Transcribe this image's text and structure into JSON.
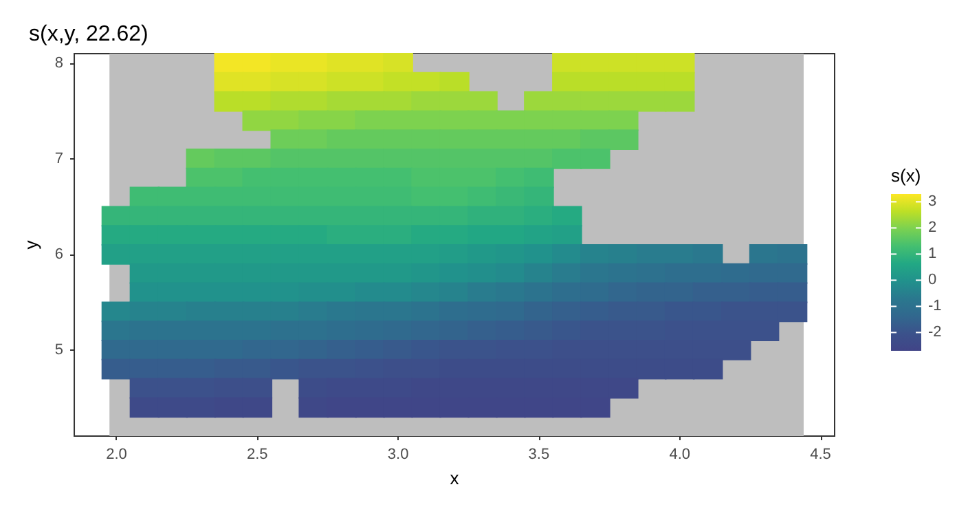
{
  "chart_data": {
    "type": "scatter",
    "title": "s(x,y, 22.62)",
    "xlabel": "x",
    "ylabel": "y",
    "clabel": "s(x)",
    "marker": "square",
    "grid": false,
    "x": [
      2.4,
      2.5,
      2.6,
      2.7,
      2.8,
      2.9,
      3.0,
      3.6,
      3.7,
      3.8,
      3.9,
      4.0,
      2.4,
      2.5,
      2.6,
      2.7,
      2.8,
      2.9,
      3.0,
      3.1,
      3.2,
      3.6,
      3.7,
      3.8,
      3.9,
      4.0,
      2.4,
      2.5,
      2.6,
      2.7,
      2.8,
      2.9,
      3.0,
      3.1,
      3.2,
      3.3,
      3.5,
      3.6,
      3.7,
      3.8,
      3.9,
      4.0,
      2.5,
      2.6,
      2.7,
      2.8,
      2.9,
      3.0,
      3.1,
      3.2,
      3.3,
      3.4,
      3.5,
      3.6,
      3.7,
      3.8,
      2.6,
      2.7,
      2.8,
      2.9,
      3.0,
      3.1,
      3.2,
      3.3,
      3.4,
      3.5,
      3.6,
      3.7,
      3.8,
      2.3,
      2.4,
      2.5,
      2.6,
      2.7,
      2.8,
      2.9,
      3.0,
      3.1,
      3.2,
      3.3,
      3.4,
      3.5,
      3.6,
      3.7,
      2.3,
      2.4,
      2.5,
      2.6,
      2.7,
      2.8,
      2.9,
      3.0,
      3.1,
      3.2,
      3.3,
      3.4,
      3.5,
      2.1,
      2.2,
      2.3,
      2.4,
      2.5,
      2.6,
      2.7,
      2.8,
      2.9,
      3.0,
      3.1,
      3.2,
      3.3,
      3.4,
      3.5,
      2.0,
      2.1,
      2.2,
      2.3,
      2.4,
      2.5,
      2.6,
      2.7,
      2.8,
      2.9,
      3.0,
      3.1,
      3.2,
      3.3,
      3.4,
      3.5,
      3.6,
      2.0,
      2.1,
      2.2,
      2.3,
      2.4,
      2.5,
      2.6,
      2.7,
      2.8,
      2.9,
      3.0,
      3.1,
      3.2,
      3.3,
      3.4,
      3.5,
      3.6,
      2.0,
      2.1,
      2.2,
      2.3,
      2.4,
      2.5,
      2.6,
      2.7,
      2.8,
      2.9,
      3.0,
      3.1,
      3.2,
      3.3,
      3.4,
      3.5,
      3.6,
      3.7,
      3.8,
      3.9,
      4.0,
      4.1,
      4.3,
      4.4,
      2.1,
      2.2,
      2.3,
      2.4,
      2.5,
      2.6,
      2.7,
      2.8,
      2.9,
      3.0,
      3.1,
      3.2,
      3.3,
      3.4,
      3.5,
      3.6,
      3.7,
      3.8,
      3.9,
      4.0,
      4.1,
      4.2,
      4.3,
      4.4,
      2.1,
      2.2,
      2.3,
      2.4,
      2.5,
      2.6,
      2.7,
      2.8,
      2.9,
      3.0,
      3.1,
      3.2,
      3.3,
      3.4,
      3.5,
      3.6,
      3.7,
      3.8,
      3.9,
      4.0,
      4.1,
      4.2,
      4.3,
      4.4,
      2.0,
      2.1,
      2.2,
      2.3,
      2.4,
      2.5,
      2.6,
      2.7,
      2.8,
      2.9,
      3.0,
      3.1,
      3.2,
      3.3,
      3.4,
      3.5,
      3.6,
      3.7,
      3.8,
      3.9,
      4.0,
      4.1,
      4.2,
      4.3,
      4.4,
      2.0,
      2.1,
      2.2,
      2.3,
      2.4,
      2.5,
      2.6,
      2.7,
      2.8,
      2.9,
      3.0,
      3.1,
      3.2,
      3.3,
      3.4,
      3.5,
      3.6,
      3.7,
      3.8,
      3.9,
      4.0,
      4.1,
      4.2,
      4.3,
      2.0,
      2.1,
      2.2,
      2.3,
      2.4,
      2.5,
      2.6,
      2.7,
      2.8,
      2.9,
      3.0,
      3.1,
      3.2,
      3.3,
      3.4,
      3.5,
      3.6,
      3.7,
      3.8,
      3.9,
      4.0,
      4.1,
      4.2,
      2.0,
      2.1,
      2.2,
      2.3,
      2.4,
      2.5,
      2.6,
      2.7,
      2.8,
      2.9,
      3.0,
      3.1,
      3.2,
      3.3,
      3.4,
      3.5,
      3.6,
      3.7,
      3.8,
      3.9,
      4.0,
      4.1,
      2.1,
      2.2,
      2.3,
      2.4,
      2.5,
      2.7,
      2.8,
      2.9,
      3.0,
      3.1,
      3.2,
      3.3,
      3.4,
      3.5,
      3.6,
      3.7,
      3.8,
      2.1,
      2.2,
      2.3,
      2.4,
      2.5,
      2.7,
      2.8,
      2.9,
      3.0,
      3.1,
      3.2,
      3.3,
      3.4,
      3.5,
      3.6,
      3.7
    ],
    "values": [
      8,
      8,
      8,
      8,
      8,
      8,
      8,
      8,
      8,
      8,
      8,
      8,
      7.8,
      7.8,
      7.8,
      7.8,
      7.8,
      7.8,
      7.8,
      7.8,
      7.8,
      7.8,
      7.8,
      7.8,
      7.8,
      7.8,
      7.6,
      7.6,
      7.6,
      7.6,
      7.6,
      7.6,
      7.6,
      7.6,
      7.6,
      7.6,
      7.6,
      7.6,
      7.6,
      7.6,
      7.6,
      7.6,
      7.4,
      7.4,
      7.4,
      7.4,
      7.4,
      7.4,
      7.4,
      7.4,
      7.4,
      7.4,
      7.4,
      7.4,
      7.4,
      7.4,
      7.2,
      7.2,
      7.2,
      7.2,
      7.2,
      7.2,
      7.2,
      7.2,
      7.2,
      7.2,
      7.2,
      7.2,
      7.2,
      7,
      7,
      7,
      7,
      7,
      7,
      7,
      7,
      7,
      7,
      7,
      7,
      7,
      7,
      7,
      6.8,
      6.8,
      6.8,
      6.8,
      6.8,
      6.8,
      6.8,
      6.8,
      6.8,
      6.8,
      6.8,
      6.8,
      6.8,
      6.6,
      6.6,
      6.6,
      6.6,
      6.6,
      6.6,
      6.6,
      6.6,
      6.6,
      6.6,
      6.6,
      6.6,
      6.6,
      6.6,
      6.6,
      6.4,
      6.4,
      6.4,
      6.4,
      6.4,
      6.4,
      6.4,
      6.4,
      6.4,
      6.4,
      6.4,
      6.4,
      6.4,
      6.4,
      6.4,
      6.4,
      6.4,
      6.2,
      6.2,
      6.2,
      6.2,
      6.2,
      6.2,
      6.2,
      6.2,
      6.2,
      6.2,
      6.2,
      6.2,
      6.2,
      6.2,
      6.2,
      6.2,
      6.2,
      6,
      6,
      6,
      6,
      6,
      6,
      6,
      6,
      6,
      6,
      6,
      6,
      6,
      6,
      6,
      6,
      6,
      6,
      6,
      6,
      6,
      6,
      6,
      6,
      5.8,
      5.8,
      5.8,
      5.8,
      5.8,
      5.8,
      5.8,
      5.8,
      5.8,
      5.8,
      5.8,
      5.8,
      5.8,
      5.8,
      5.8,
      5.8,
      5.8,
      5.8,
      5.8,
      5.8,
      5.8,
      5.8,
      5.8,
      5.8,
      5.6,
      5.6,
      5.6,
      5.6,
      5.6,
      5.6,
      5.6,
      5.6,
      5.6,
      5.6,
      5.6,
      5.6,
      5.6,
      5.6,
      5.6,
      5.6,
      5.6,
      5.6,
      5.6,
      5.6,
      5.6,
      5.6,
      5.6,
      5.6,
      5.4,
      5.4,
      5.4,
      5.4,
      5.4,
      5.4,
      5.4,
      5.4,
      5.4,
      5.4,
      5.4,
      5.4,
      5.4,
      5.4,
      5.4,
      5.4,
      5.4,
      5.4,
      5.4,
      5.4,
      5.4,
      5.4,
      5.4,
      5.4,
      5.4,
      5.2,
      5.2,
      5.2,
      5.2,
      5.2,
      5.2,
      5.2,
      5.2,
      5.2,
      5.2,
      5.2,
      5.2,
      5.2,
      5.2,
      5.2,
      5.2,
      5.2,
      5.2,
      5.2,
      5.2,
      5.2,
      5.2,
      5.2,
      5.2,
      5,
      5,
      5,
      5,
      5,
      5,
      5,
      5,
      5,
      5,
      5,
      5,
      5,
      5,
      5,
      5,
      5,
      5,
      5,
      5,
      5,
      5,
      5,
      4.8,
      4.8,
      4.8,
      4.8,
      4.8,
      4.8,
      4.8,
      4.8,
      4.8,
      4.8,
      4.8,
      4.8,
      4.8,
      4.8,
      4.8,
      4.8,
      4.8,
      4.8,
      4.8,
      4.8,
      4.8,
      4.8,
      4.6,
      4.6,
      4.6,
      4.6,
      4.6,
      4.6,
      4.6,
      4.6,
      4.6,
      4.6,
      4.6,
      4.6,
      4.6,
      4.6,
      4.6,
      4.6,
      4.6,
      4.4,
      4.4,
      4.4,
      4.4,
      4.4,
      4.4,
      4.4,
      4.4,
      4.4,
      4.4,
      4.4,
      4.4,
      4.4,
      4.4,
      4.4,
      4.4
    ],
    "cvalues": [
      3.2,
      3.2,
      3.1,
      3.1,
      3.0,
      3.0,
      2.9,
      2.8,
      2.8,
      2.8,
      2.8,
      2.8,
      3.0,
      3.0,
      2.9,
      2.9,
      2.8,
      2.8,
      2.7,
      2.7,
      2.6,
      2.6,
      2.6,
      2.6,
      2.6,
      2.6,
      2.6,
      2.6,
      2.5,
      2.5,
      2.4,
      2.4,
      2.4,
      2.3,
      2.3,
      2.3,
      2.3,
      2.3,
      2.3,
      2.3,
      2.3,
      2.3,
      2.2,
      2.2,
      2.1,
      2.1,
      2.0,
      2.0,
      2.0,
      2.0,
      2.0,
      2.0,
      2.0,
      2.0,
      2.0,
      2.0,
      1.8,
      1.8,
      1.7,
      1.7,
      1.7,
      1.7,
      1.7,
      1.7,
      1.7,
      1.7,
      1.7,
      1.6,
      1.6,
      1.7,
      1.6,
      1.6,
      1.5,
      1.5,
      1.5,
      1.5,
      1.5,
      1.5,
      1.5,
      1.5,
      1.5,
      1.5,
      1.4,
      1.4,
      1.4,
      1.4,
      1.3,
      1.3,
      1.3,
      1.3,
      1.3,
      1.3,
      1.4,
      1.4,
      1.4,
      1.3,
      1.2,
      1.2,
      1.2,
      1.2,
      1.2,
      1.2,
      1.2,
      1.2,
      1.2,
      1.2,
      1.2,
      1.3,
      1.3,
      1.2,
      1.1,
      1.0,
      1.0,
      1.0,
      1.0,
      1.0,
      1.0,
      1.0,
      1.0,
      1.0,
      1.0,
      1.0,
      1.0,
      1.0,
      1.0,
      0.9,
      0.9,
      0.8,
      0.7,
      0.7,
      0.7,
      0.7,
      0.7,
      0.7,
      0.7,
      0.7,
      0.7,
      0.8,
      0.8,
      0.8,
      0.7,
      0.7,
      0.6,
      0.6,
      0.5,
      0.4,
      0.4,
      0.4,
      0.4,
      0.4,
      0.4,
      0.4,
      0.4,
      0.4,
      0.4,
      0.4,
      0.4,
      0.4,
      0.3,
      0.2,
      0.1,
      0.0,
      -0.2,
      -0.4,
      -0.5,
      -0.6,
      -0.6,
      -0.7,
      -0.8,
      -0.9,
      0.2,
      0.2,
      0.2,
      0.2,
      0.2,
      0.2,
      0.2,
      0.2,
      0.2,
      0.2,
      0.1,
      0.0,
      -0.1,
      -0.2,
      -0.4,
      -0.6,
      -0.8,
      -0.9,
      -1.0,
      -1.1,
      -1.1,
      -1.2,
      -1.3,
      -1.3,
      0.0,
      0.0,
      0.0,
      0.0,
      0.0,
      0.0,
      -0.1,
      -0.1,
      -0.2,
      -0.2,
      -0.3,
      -0.4,
      -0.6,
      -0.7,
      -0.9,
      -1.1,
      -1.2,
      -1.4,
      -1.5,
      -1.5,
      -1.6,
      -1.6,
      -1.7,
      -1.7,
      -0.3,
      -0.4,
      -0.4,
      -0.5,
      -0.5,
      -0.5,
      -0.5,
      -0.6,
      -0.7,
      -0.8,
      -0.8,
      -0.9,
      -1.1,
      -1.2,
      -1.3,
      -1.5,
      -1.6,
      -1.7,
      -1.8,
      -1.8,
      -1.9,
      -1.9,
      -2.0,
      -2.0,
      -2.0,
      -0.8,
      -0.9,
      -0.9,
      -0.9,
      -0.9,
      -0.9,
      -1.0,
      -1.0,
      -1.1,
      -1.2,
      -1.3,
      -1.4,
      -1.5,
      -1.6,
      -1.7,
      -1.8,
      -1.9,
      -2.0,
      -2.0,
      -2.0,
      -2.1,
      -2.1,
      -2.1,
      -2.1,
      -1.3,
      -1.3,
      -1.3,
      -1.3,
      -1.3,
      -1.4,
      -1.4,
      -1.5,
      -1.6,
      -1.7,
      -1.8,
      -1.9,
      -2.0,
      -2.0,
      -2.1,
      -2.1,
      -2.2,
      -2.2,
      -2.2,
      -2.2,
      -2.2,
      -2.2,
      -2.2,
      -1.7,
      -1.7,
      -1.7,
      -1.7,
      -1.8,
      -1.8,
      -1.9,
      -2.0,
      -2.0,
      -2.1,
      -2.2,
      -2.2,
      -2.3,
      -2.3,
      -2.3,
      -2.3,
      -2.3,
      -2.3,
      -2.3,
      -2.3,
      -2.3,
      -2.3,
      -2.1,
      -2.1,
      -2.1,
      -2.2,
      -2.2,
      -2.3,
      -2.4,
      -2.4,
      -2.4,
      -2.5,
      -2.5,
      -2.5,
      -2.5,
      -2.5,
      -2.5,
      -2.5,
      -2.5,
      -2.4,
      -2.4,
      -2.4,
      -2.5,
      -2.5,
      -2.5,
      -2.6,
      -2.6,
      -2.6,
      -2.6,
      -2.6,
      -2.6,
      -2.6,
      -2.6,
      -2.6,
      -2.6
    ],
    "bands": [
      {
        "axis": "x",
        "from": 1.975,
        "to": 4.44,
        "color": "#bebebe"
      }
    ],
    "clim": [
      -2.7,
      3.3
    ],
    "cticks": [
      -2,
      -1,
      0,
      1,
      2,
      3
    ],
    "xlim": [
      1.85,
      4.55
    ],
    "ylim": [
      4.1,
      8.1
    ],
    "xticks": [
      {
        "value": 2,
        "label": "2.0"
      },
      2.5,
      {
        "value": 3,
        "label": "3.0"
      },
      3.5,
      {
        "value": 4,
        "label": "4.0"
      },
      4.5
    ],
    "yticks": [
      5,
      6,
      7,
      8
    ]
  }
}
